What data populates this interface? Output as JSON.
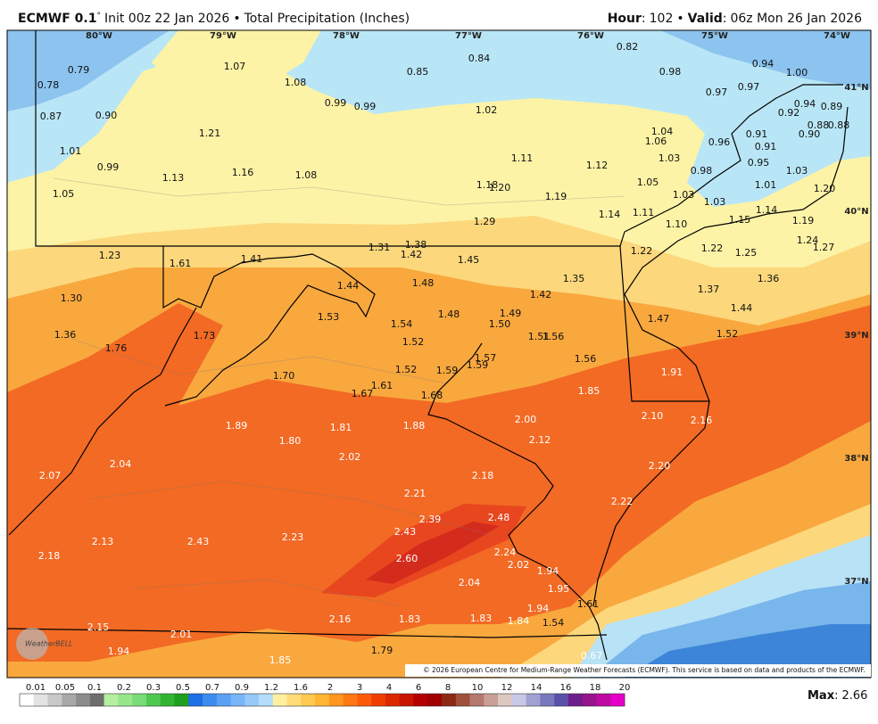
{
  "header": {
    "model": "ECMWF 0.1",
    "degree": "°",
    "init": "Init 00z 22 Jan 2026",
    "separator": "•",
    "product": "Total Precipitation (Inches)",
    "hour_label": "Hour",
    "hour": "102",
    "valid_label": "Valid",
    "valid": "06z Mon 26 Jan 2026",
    "colon": ":"
  },
  "map": {
    "lon_labels": [
      "80°W",
      "79°W",
      "78°W",
      "77°W",
      "76°W",
      "75°W",
      "74°W"
    ],
    "lat_labels": [
      "41°N",
      "40°N",
      "39°N",
      "38°N",
      "37°N"
    ],
    "values": [
      "0.79",
      "0.78",
      "0.87",
      "0.90",
      "1.07",
      "1.08",
      "0.85",
      "0.84",
      "0.82",
      "0.98",
      "0.94",
      "1.00",
      "0.97",
      "0.97",
      "0.94",
      "0.89",
      "0.92",
      "0.99",
      "0.99",
      "1.02",
      "1.21",
      "1.01",
      "0.99",
      "1.13",
      "1.16",
      "1.08",
      "1.11",
      "1.12",
      "1.04",
      "1.06",
      "1.03",
      "0.96",
      "0.91",
      "0.91",
      "0.95",
      "0.98",
      "1.03",
      "0.90",
      "0.88",
      "0.88",
      "1.05",
      "1.18",
      "1.20",
      "1.19",
      "1.05",
      "1.03",
      "1.01",
      "1.20",
      "1.03",
      "1.14",
      "1.11",
      "1.29",
      "1.15",
      "1.14",
      "1.19",
      "1.10",
      "1.23",
      "1.31",
      "1.38",
      "1.42",
      "1.45",
      "1.22",
      "1.22",
      "1.25",
      "1.24",
      "1.27",
      "1.61",
      "1.41",
      "1.44",
      "1.48",
      "1.35",
      "1.42",
      "1.37",
      "1.36",
      "1.30",
      "1.53",
      "1.48",
      "1.49",
      "1.50",
      "1.54",
      "1.47",
      "1.44",
      "1.36",
      "1.73",
      "1.52",
      "1.51",
      "1.56",
      "1.52",
      "1.76",
      "1.57",
      "1.59",
      "1.52",
      "1.59",
      "1.56",
      "1.70",
      "1.61",
      "1.67",
      "1.68",
      "1.85",
      "1.91",
      "2.10",
      "2.16",
      "1.89",
      "1.81",
      "1.88",
      "2.00",
      "2.12",
      "1.80",
      "2.07",
      "2.04",
      "2.02",
      "2.18",
      "2.20",
      "2.21",
      "2.22",
      "2.39",
      "2.48",
      "2.43",
      "2.13",
      "2.43",
      "2.23",
      "2.18",
      "2.24",
      "2.60",
      "2.02",
      "1.94",
      "2.04",
      "1.95",
      "1.94",
      "1.61",
      "2.16",
      "1.83",
      "1.83",
      "1.84",
      "1.54",
      "2.15",
      "2.01",
      "1.94",
      "1.79",
      "1.85",
      "0.67"
    ],
    "logo": "WeatherBELL",
    "copyright": "© 2026 European Centre for Medium-Range Weather Forecasts (ECMWF). This service is based on data and products of the ECMWF."
  },
  "legend": {
    "ticks": [
      "0.01",
      "0.05",
      "0.1",
      "0.2",
      "0.3",
      "0.5",
      "0.7",
      "0.9",
      "1.2",
      "1.6",
      "2",
      "3",
      "4",
      "6",
      "8",
      "10",
      "12",
      "14",
      "16",
      "18",
      "20"
    ],
    "max_label": "Max",
    "colon": ":",
    "max_value": "2.66"
  }
}
